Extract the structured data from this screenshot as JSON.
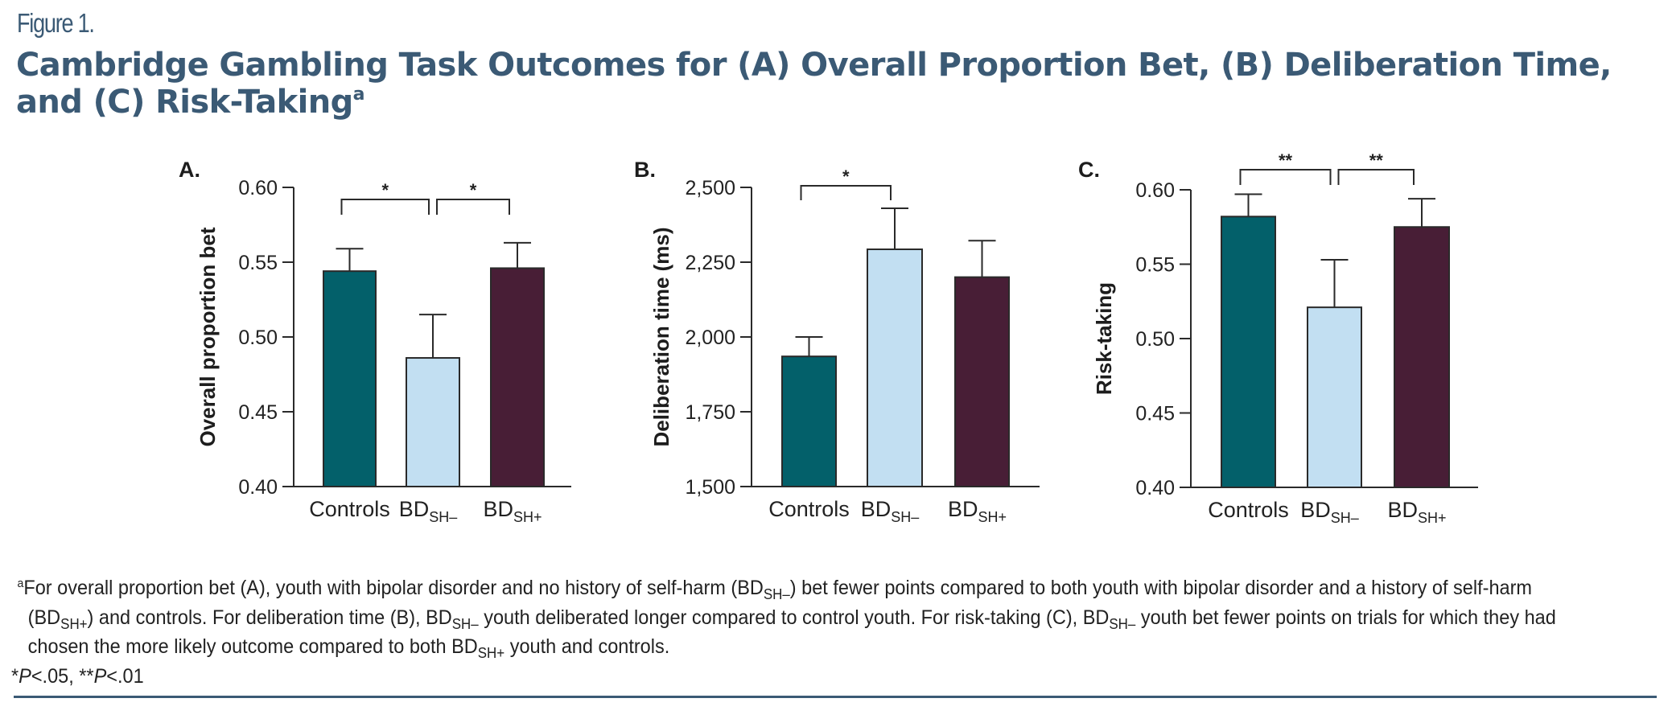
{
  "figure_label": "Figure 1.",
  "title": {
    "text": "Cambridge Gambling Task Outcomes for (A) Overall Proportion Bet, (B) Deliberation Time, and (C) Risk-Taking",
    "footnote_marker": "a"
  },
  "colors": {
    "controls": "#03606a",
    "bd_sh_minus": "#c2dff2",
    "bd_sh_plus": "#481e36",
    "title": "#3b5a75",
    "axis": "#2a2a2a"
  },
  "chart_data": [
    {
      "type": "bar",
      "panel": "A.",
      "title": "",
      "xlabel": "",
      "ylabel": "Overall proportion bet",
      "ylim": [
        0.4,
        0.6
      ],
      "yticks": [
        "0.40",
        "0.45",
        "0.50",
        "0.55",
        "0.60"
      ],
      "ytick_values": [
        0.4,
        0.45,
        0.5,
        0.55,
        0.6
      ],
      "categories": [
        {
          "main": "Controls",
          "sub": ""
        },
        {
          "main": "BD",
          "sub": "SH–"
        },
        {
          "main": "BD",
          "sub": "SH+"
        }
      ],
      "values": [
        0.544,
        0.486,
        0.546
      ],
      "error_upper": [
        0.559,
        0.515,
        0.563
      ],
      "significance": [
        {
          "from": 0,
          "to": 1,
          "label": "*"
        },
        {
          "from": 1,
          "to": 2,
          "label": "*"
        }
      ]
    },
    {
      "type": "bar",
      "panel": "B.",
      "title": "",
      "xlabel": "",
      "ylabel": "Deliberation time (ms)",
      "ylim": [
        1500,
        2500
      ],
      "yticks": [
        "1,500",
        "1,750",
        "2,000",
        "2,250",
        "2,500"
      ],
      "ytick_values": [
        1500,
        1750,
        2000,
        2250,
        2500
      ],
      "categories": [
        {
          "main": "Controls",
          "sub": ""
        },
        {
          "main": "BD",
          "sub": "SH–"
        },
        {
          "main": "BD",
          "sub": "SH+"
        }
      ],
      "values": [
        1935,
        2293,
        2200
      ],
      "error_upper": [
        2000,
        2430,
        2322
      ],
      "significance": [
        {
          "from": 0,
          "to": 1,
          "label": "*"
        }
      ]
    },
    {
      "type": "bar",
      "panel": "C.",
      "title": "",
      "xlabel": "",
      "ylabel": "Risk-taking",
      "ylim": [
        0.4,
        0.6
      ],
      "yticks": [
        "0.40",
        "0.45",
        "0.50",
        "0.55",
        "0.60"
      ],
      "ytick_values": [
        0.4,
        0.45,
        0.5,
        0.55,
        0.6
      ],
      "categories": [
        {
          "main": "Controls",
          "sub": ""
        },
        {
          "main": "BD",
          "sub": "SH–"
        },
        {
          "main": "BD",
          "sub": "SH+"
        }
      ],
      "values": [
        0.582,
        0.521,
        0.575
      ],
      "error_upper": [
        0.597,
        0.553,
        0.594
      ],
      "significance": [
        {
          "from": 0,
          "to": 1,
          "label": "**"
        },
        {
          "from": 1,
          "to": 2,
          "label": "**"
        }
      ]
    }
  ],
  "footnote": {
    "marker": "a",
    "segments": [
      {
        "t": "For overall proportion bet (A), youth with bipolar disorder and no history of self-harm (BD"
      },
      {
        "sub": "SH–"
      },
      {
        "t": ") bet fewer points compared to both youth with bipolar disorder and a history of self-harm (BD"
      },
      {
        "sub": "SH+"
      },
      {
        "t": ") and controls. For deliberation time (B), BD"
      },
      {
        "sub": "SH–"
      },
      {
        "t": " youth deliberated longer compared to control youth. For risk-taking (C), BD"
      },
      {
        "sub": "SH–"
      },
      {
        "t": " youth bet fewer points on trials for which they had chosen the more likely outcome compared to both BD"
      },
      {
        "sub": "SH+"
      },
      {
        "t": " youth and controls."
      }
    ],
    "significance_note": {
      "star1": "*",
      "p1": "P",
      "v1": "<.05, ",
      "star2": "**",
      "p2": "P",
      "v2": "<.01"
    }
  }
}
